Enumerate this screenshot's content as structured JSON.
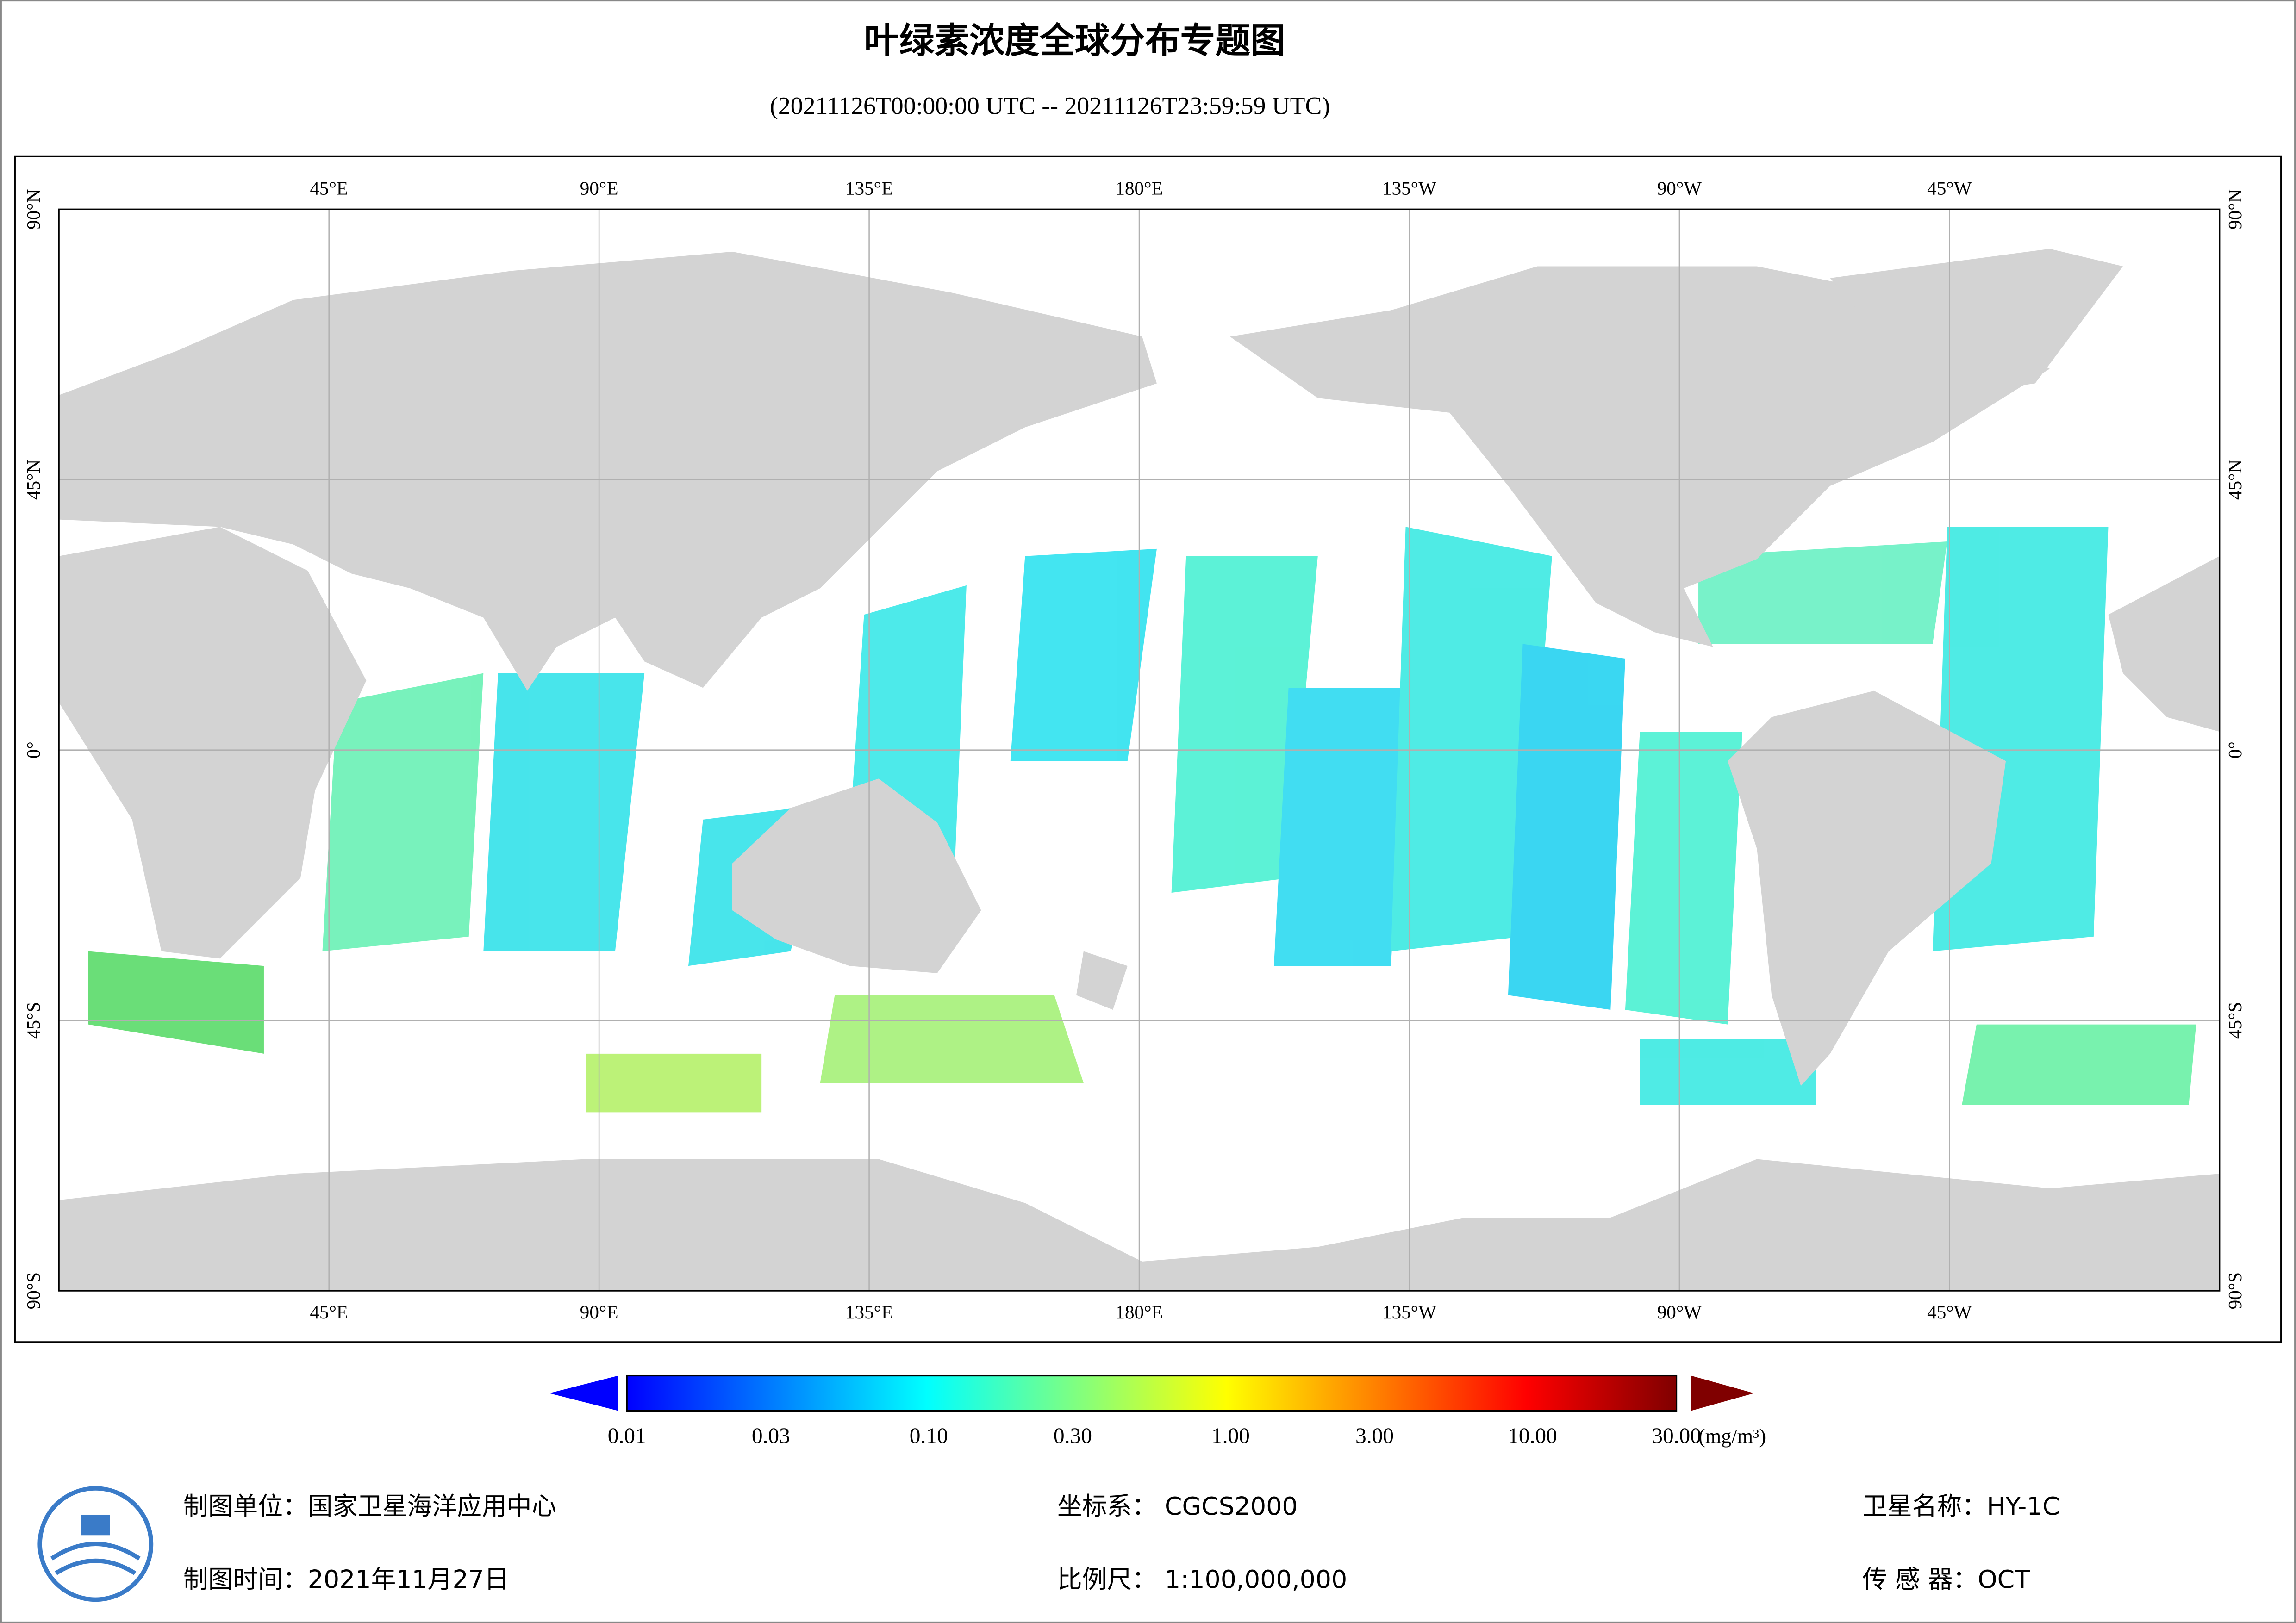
{
  "header": {
    "title": "叶绿素浓度全球分布专题图",
    "subtitle": "(20211126T00:00:00 UTC -- 20211126T23:59:59 UTC)"
  },
  "map": {
    "lonlim": [
      0,
      360
    ],
    "latlim": [
      -90,
      90
    ],
    "lon_ticks": [
      {
        "value": 45,
        "label": "45°E"
      },
      {
        "value": 90,
        "label": "90°E"
      },
      {
        "value": 135,
        "label": "135°E"
      },
      {
        "value": 180,
        "label": "180°E"
      },
      {
        "value": 225,
        "label": "135°W"
      },
      {
        "value": 270,
        "label": "90°W"
      },
      {
        "value": 315,
        "label": "45°W"
      }
    ],
    "lat_ticks": [
      {
        "value": 90,
        "label": "90°N"
      },
      {
        "value": 45,
        "label": "45°N"
      },
      {
        "value": 0,
        "label": "0°"
      },
      {
        "value": -45,
        "label": "45°S"
      },
      {
        "value": -90,
        "label": "90°S"
      }
    ]
  },
  "colorbar": {
    "scale": "log",
    "lim": [
      0.01,
      30
    ],
    "colors": [
      "#0000ff",
      "#0080ff",
      "#00ffff",
      "#80ff80",
      "#ffff00",
      "#ff8000",
      "#ff0000",
      "#800000"
    ],
    "ticks": [
      {
        "value": 0.01,
        "label": "0.01"
      },
      {
        "value": 0.03,
        "label": "0.03"
      },
      {
        "value": 0.1,
        "label": "0.10"
      },
      {
        "value": 0.3,
        "label": "0.30"
      },
      {
        "value": 1,
        "label": "1.00"
      },
      {
        "value": 3,
        "label": "3.00"
      },
      {
        "value": 10,
        "label": "10.00"
      },
      {
        "value": 30,
        "label": "30.00"
      }
    ],
    "unit": "(mg/m³)"
  },
  "footer": {
    "producer": "制图单位：国家卫星海洋应用中心",
    "date": "制图时间：2021年11月27日",
    "crs": "坐标系：  CGCS2000",
    "scale": "比例尺：  1:100,000,000",
    "satellite": "卫星名称：HY-1C",
    "sensor": "传 感 器：OCT"
  }
}
